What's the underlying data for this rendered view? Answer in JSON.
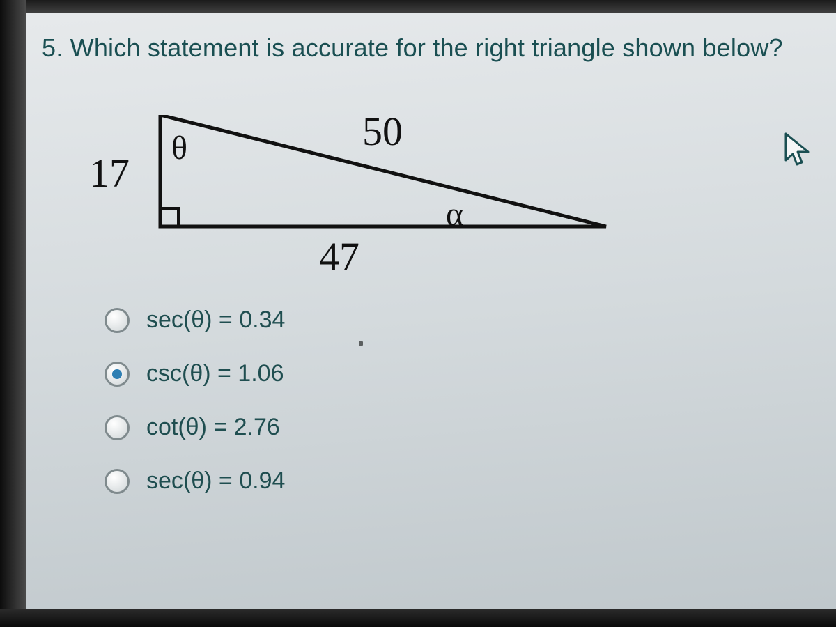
{
  "question": {
    "number": "5.",
    "text": "Which statement is accurate for the right triangle shown below?"
  },
  "triangle": {
    "side_vertical_label": "17",
    "side_hypotenuse_label": "50",
    "side_base_label": "47",
    "angle_top_label": "θ",
    "angle_right_label": "α",
    "vertices": {
      "A": [
        30,
        0
      ],
      "B": [
        30,
        160
      ],
      "C": [
        670,
        160
      ]
    },
    "right_angle_at": "B",
    "stroke_color": "#111111",
    "stroke_width": 5,
    "label_fontsize": 58,
    "angle_label_fontsize": 48
  },
  "options": [
    {
      "id": "opt-a",
      "label": "sec(θ) = 0.34",
      "selected": false
    },
    {
      "id": "opt-b",
      "label": "csc(θ) = 1.06",
      "selected": true
    },
    {
      "id": "opt-c",
      "label": "cot(θ) = 2.76",
      "selected": false
    },
    {
      "id": "opt-d",
      "label": "sec(θ) = 0.94",
      "selected": false
    }
  ],
  "colors": {
    "question_text": "#1a4f52",
    "option_text": "#1f4e50",
    "radio_border": "#7f8a8d",
    "radio_selected_dot": "#2f7fb3",
    "background_top": "#e7eaec",
    "background_bottom": "#bfc7cb"
  },
  "cursor": {
    "visible": true
  }
}
